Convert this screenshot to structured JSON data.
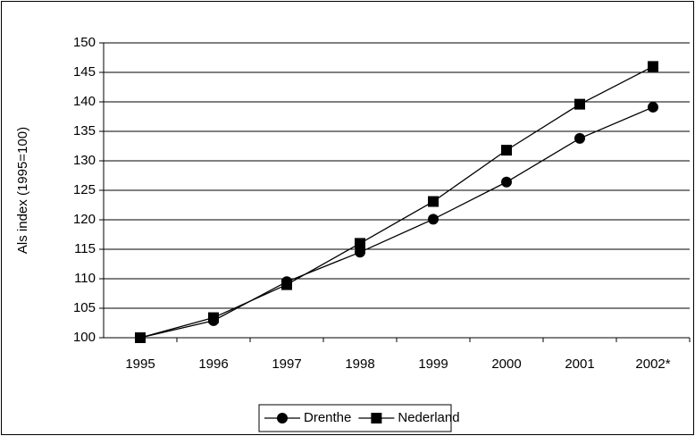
{
  "chart_data": {
    "type": "line",
    "y_label": "Als index (1995=100)",
    "categories": [
      "1995",
      "1996",
      "1997",
      "1998",
      "1999",
      "2000",
      "2001",
      "2002*"
    ],
    "series": [
      {
        "name": "Drenthe",
        "color": "#000000",
        "marker": "circle",
        "values": [
          100,
          102.9,
          109.5,
          114.5,
          120.1,
          126.4,
          133.8,
          139.1
        ]
      },
      {
        "name": "Nederland",
        "color": "#000000",
        "marker": "square",
        "values": [
          100,
          103.4,
          109,
          116,
          123.1,
          131.8,
          139.6,
          146
        ]
      }
    ],
    "ylim": [
      100,
      150
    ],
    "yticks": [
      100,
      105,
      110,
      115,
      120,
      125,
      130,
      135,
      140,
      145,
      150
    ],
    "grid": true,
    "legend": "bottom"
  }
}
